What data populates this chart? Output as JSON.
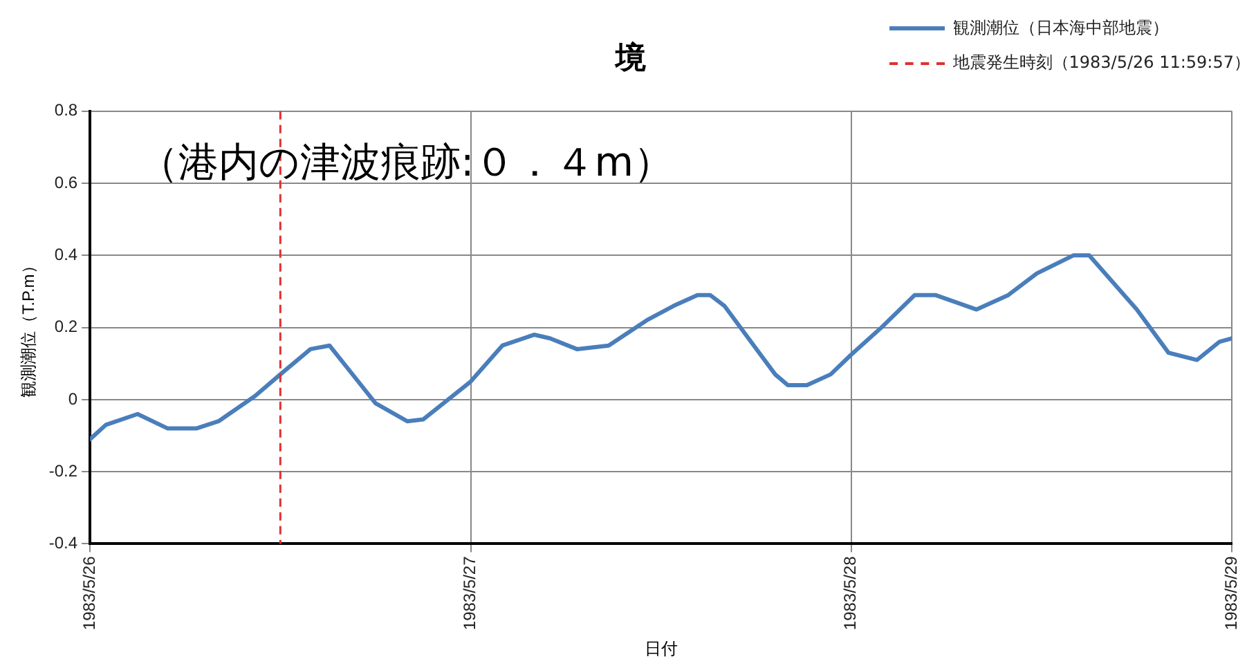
{
  "chart_data": {
    "type": "line",
    "title": "境",
    "xlabel": "日付",
    "ylabel": "観測潮位（T.P.m）",
    "annotations": [
      "（港内の津波痕跡:０．４m）"
    ],
    "x": [
      "1983-05-26T00:00",
      "1983-05-26T01:00",
      "1983-05-26T03:00",
      "1983-05-26T04:54",
      "1983-05-26T06:42",
      "1983-05-26T08:06",
      "1983-05-26T10:24",
      "1983-05-26T12:00",
      "1983-05-26T13:54",
      "1983-05-26T15:06",
      "1983-05-26T18:00",
      "1983-05-26T20:00",
      "1983-05-26T21:00",
      "1983-05-27T00:00",
      "1983-05-27T02:00",
      "1983-05-27T04:00",
      "1983-05-27T05:00",
      "1983-05-27T06:42",
      "1983-05-27T08:42",
      "1983-05-27T11:06",
      "1983-05-27T12:48",
      "1983-05-27T14:18",
      "1983-05-27T15:06",
      "1983-05-27T16:00",
      "1983-05-27T19:12",
      "1983-05-27T20:00",
      "1983-05-27T21:12",
      "1983-05-27T22:42",
      "1983-05-28T00:00",
      "1983-05-28T01:54",
      "1983-05-28T04:00",
      "1983-05-28T05:18",
      "1983-05-28T07:54",
      "1983-05-28T09:54",
      "1983-05-28T11:42",
      "1983-05-28T14:00",
      "1983-05-28T15:00",
      "1983-05-28T18:00",
      "1983-05-28T20:00",
      "1983-05-28T21:48",
      "1983-05-28T23:12",
      "1983-05-29T00:00"
    ],
    "series": [
      {
        "name": "観測潮位（日本海中部地震）",
        "color": "#4a7ebb",
        "values": [
          -0.11,
          -0.07,
          -0.04,
          -0.08,
          -0.08,
          -0.06,
          0.01,
          0.07,
          0.14,
          0.15,
          -0.01,
          -0.06,
          -0.055,
          0.05,
          0.15,
          0.18,
          0.17,
          0.14,
          0.15,
          0.22,
          0.26,
          0.29,
          0.29,
          0.26,
          0.07,
          0.04,
          0.04,
          0.07,
          0.125,
          0.2,
          0.29,
          0.29,
          0.25,
          0.29,
          0.35,
          0.4,
          0.4,
          0.25,
          0.13,
          0.11,
          0.16,
          0.17
        ]
      }
    ],
    "xlim": [
      "1983-05-26",
      "1983-05-29"
    ],
    "xticks": [
      {
        "value": "1983-05-26",
        "label": "1983/5/26"
      },
      {
        "value": "1983-05-27",
        "label": "1983/5/27"
      },
      {
        "value": "1983-05-28",
        "label": "1983/5/28"
      },
      {
        "value": "1983-05-29",
        "label": "1983/5/29"
      }
    ],
    "ylim": [
      -0.4,
      0.8
    ],
    "yticks": [
      -0.4,
      -0.2,
      0,
      0.2,
      0.4,
      0.6,
      0.8
    ],
    "ref_lines": [
      {
        "axis": "x",
        "value": "1983-05-26T11:59:57",
        "label": "地震発生時刻（1983/5/26 11:59:57）",
        "color": "#e03030",
        "line_style": "dashed"
      }
    ],
    "grid": true,
    "legend": "top right",
    "marker": "none",
    "line_style": "solid"
  }
}
